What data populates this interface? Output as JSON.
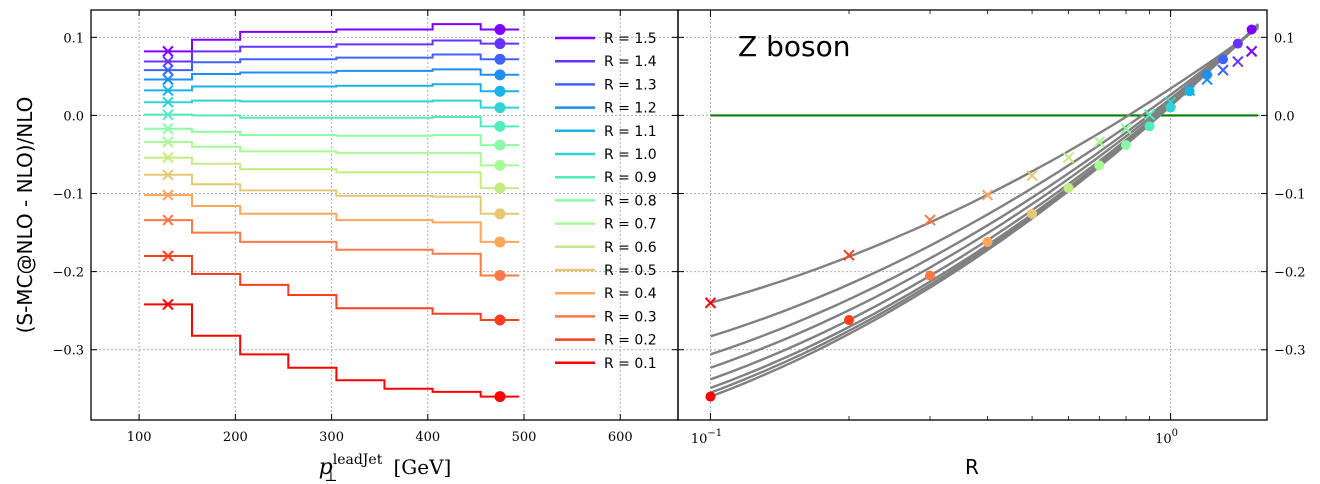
{
  "chart_data": [
    {
      "type": "line",
      "subtype": "step",
      "xlabel_main": "p",
      "xlabel_sub": "⊥",
      "xlabel_sup": "leadJet",
      "xlabel_unit": "[GeV]",
      "ylabel": "(S-MC@NLO - NLO)/NLO",
      "xlim": [
        50,
        660
      ],
      "ylim": [
        -0.39,
        0.135
      ],
      "xticks": [
        100,
        200,
        300,
        400,
        500,
        600
      ],
      "yticks": [
        0.1,
        0.0,
        -0.1,
        -0.2,
        -0.3
      ],
      "ytick_labels": [
        "0.1",
        "0.0",
        "−0.1",
        "−0.2",
        "−0.3"
      ],
      "grid": true,
      "legend_position": "right",
      "bin_edges": [
        105,
        155,
        205,
        255,
        305,
        355,
        405,
        455,
        495
      ],
      "cross_x": 130,
      "dot_x": 475,
      "series": [
        {
          "name": "R = 1.5",
          "color": "#7f00ff",
          "values": [
            0.082,
            0.097,
            0.107,
            0.107,
            0.11,
            0.11,
            0.117,
            0.11
          ],
          "cross": 0.082,
          "dot": 0.11
        },
        {
          "name": "R = 1.4",
          "color": "#6633fe",
          "values": [
            0.069,
            0.082,
            0.088,
            0.088,
            0.091,
            0.091,
            0.096,
            0.092
          ],
          "cross": 0.069,
          "dot": 0.092
        },
        {
          "name": "R = 1.3",
          "color": "#4062fa",
          "values": [
            0.058,
            0.068,
            0.072,
            0.072,
            0.074,
            0.074,
            0.078,
            0.072
          ],
          "cross": 0.058,
          "dot": 0.072
        },
        {
          "name": "R = 1.2",
          "color": "#1e8ef0",
          "values": [
            0.046,
            0.053,
            0.055,
            0.055,
            0.057,
            0.057,
            0.059,
            0.052
          ],
          "cross": 0.046,
          "dot": 0.052
        },
        {
          "name": "R = 1.1",
          "color": "#19b2e6",
          "values": [
            0.032,
            0.037,
            0.037,
            0.037,
            0.038,
            0.038,
            0.04,
            0.031
          ],
          "cross": 0.032,
          "dot": 0.031
        },
        {
          "name": "R = 1.0",
          "color": "#2fd3d3",
          "values": [
            0.017,
            0.019,
            0.018,
            0.018,
            0.018,
            0.018,
            0.019,
            0.01
          ],
          "cross": 0.017,
          "dot": 0.01
        },
        {
          "name": "R = 0.9",
          "color": "#50ecbd",
          "values": [
            0.001,
            0.0,
            -0.003,
            -0.003,
            -0.003,
            -0.003,
            -0.002,
            -0.014
          ],
          "cross": 0.001,
          "dot": -0.014
        },
        {
          "name": "R = 0.8",
          "color": "#8bfba5",
          "values": [
            -0.017,
            -0.021,
            -0.025,
            -0.025,
            -0.026,
            -0.026,
            -0.025,
            -0.038
          ],
          "cross": -0.017,
          "dot": -0.038
        },
        {
          "name": "R = 0.7",
          "color": "#a6fb94",
          "values": [
            -0.034,
            -0.04,
            -0.046,
            -0.046,
            -0.048,
            -0.048,
            -0.048,
            -0.064
          ],
          "cross": -0.034,
          "dot": -0.064
        },
        {
          "name": "R = 0.6",
          "color": "#c4eb80",
          "values": [
            -0.054,
            -0.062,
            -0.069,
            -0.069,
            -0.073,
            -0.073,
            -0.073,
            -0.093
          ],
          "cross": -0.054,
          "dot": -0.093
        },
        {
          "name": "R = 0.5",
          "color": "#e6c874",
          "values": [
            -0.076,
            -0.088,
            -0.096,
            -0.096,
            -0.103,
            -0.103,
            -0.104,
            -0.126
          ],
          "cross": -0.076,
          "dot": -0.126
        },
        {
          "name": "R = 0.4",
          "color": "#ffa55c",
          "values": [
            -0.102,
            -0.116,
            -0.126,
            -0.126,
            -0.134,
            -0.134,
            -0.137,
            -0.162
          ],
          "cross": -0.102,
          "dot": -0.162
        },
        {
          "name": "R = 0.3",
          "color": "#ff7845",
          "values": [
            -0.134,
            -0.15,
            -0.162,
            -0.162,
            -0.172,
            -0.172,
            -0.177,
            -0.205
          ],
          "cross": -0.134,
          "dot": -0.205
        },
        {
          "name": "R = 0.2",
          "color": "#ff3e20",
          "values": [
            -0.18,
            -0.203,
            -0.217,
            -0.23,
            -0.247,
            -0.247,
            -0.254,
            -0.262
          ],
          "cross": -0.18,
          "dot": -0.262
        },
        {
          "name": "R = 0.1",
          "color": "#ff0000",
          "values": [
            -0.242,
            -0.282,
            -0.306,
            -0.323,
            -0.339,
            -0.35,
            -0.354,
            -0.36
          ],
          "cross": -0.242,
          "dot": -0.36
        }
      ]
    },
    {
      "type": "line",
      "xscale": "log",
      "xlabel": "R",
      "xlim": [
        0.085,
        1.62
      ],
      "ylim": [
        -0.39,
        0.135
      ],
      "xticks": [
        0.1,
        1.0
      ],
      "xtick_base": "10",
      "xtick_exp": [
        "−1",
        "0"
      ],
      "yticks": [
        0.1,
        0.0,
        -0.1,
        -0.2,
        -0.3
      ],
      "ytick_labels": [
        "0.1",
        "0.0",
        "−0.1",
        "−0.2",
        "−0.3"
      ],
      "grid": true,
      "annotation": "Z boson",
      "annotation_color": "#008000",
      "reference_line": {
        "y": 0.0,
        "color": "#008000"
      },
      "fit_color": "#808080",
      "fit_lines": [
        {
          "y_at_0.1": -0.24,
          "y_at_1.55": 0.112
        },
        {
          "y_at_0.1": -0.283,
          "y_at_1.55": 0.114
        },
        {
          "y_at_0.1": -0.306,
          "y_at_1.55": 0.114
        },
        {
          "y_at_0.1": -0.323,
          "y_at_1.55": 0.115
        },
        {
          "y_at_0.1": -0.338,
          "y_at_1.55": 0.115
        },
        {
          "y_at_0.1": -0.349,
          "y_at_1.55": 0.116
        },
        {
          "y_at_0.1": -0.355,
          "y_at_1.55": 0.117
        },
        {
          "y_at_0.1": -0.36,
          "y_at_1.55": 0.117
        }
      ],
      "cross_points": [
        {
          "x": 0.1,
          "y": -0.24,
          "color": "#ff0000"
        },
        {
          "x": 0.2,
          "y": -0.179,
          "color": "#ff3e20"
        },
        {
          "x": 0.3,
          "y": -0.134,
          "color": "#ff7845"
        },
        {
          "x": 0.4,
          "y": -0.102,
          "color": "#ffa55c"
        },
        {
          "x": 0.5,
          "y": -0.077,
          "color": "#e6c874"
        },
        {
          "x": 0.6,
          "y": -0.054,
          "color": "#c4eb80"
        },
        {
          "x": 0.7,
          "y": -0.034,
          "color": "#a6fb94"
        },
        {
          "x": 0.8,
          "y": -0.017,
          "color": "#8bfba5"
        },
        {
          "x": 0.9,
          "y": 0.001,
          "color": "#50ecbd"
        },
        {
          "x": 1.0,
          "y": 0.017,
          "color": "#2fd3d3"
        },
        {
          "x": 1.1,
          "y": 0.032,
          "color": "#19b2e6"
        },
        {
          "x": 1.2,
          "y": 0.046,
          "color": "#1e8ef0"
        },
        {
          "x": 1.3,
          "y": 0.058,
          "color": "#4062fa"
        },
        {
          "x": 1.4,
          "y": 0.069,
          "color": "#6633fe"
        },
        {
          "x": 1.5,
          "y": 0.082,
          "color": "#7f00ff"
        }
      ],
      "dot_points": [
        {
          "x": 0.1,
          "y": -0.36,
          "color": "#ff0000"
        },
        {
          "x": 0.2,
          "y": -0.262,
          "color": "#ff3e20"
        },
        {
          "x": 0.3,
          "y": -0.205,
          "color": "#ff7845"
        },
        {
          "x": 0.4,
          "y": -0.162,
          "color": "#ffa55c"
        },
        {
          "x": 0.5,
          "y": -0.126,
          "color": "#e6c874"
        },
        {
          "x": 0.6,
          "y": -0.093,
          "color": "#c4eb80"
        },
        {
          "x": 0.7,
          "y": -0.064,
          "color": "#a6fb94"
        },
        {
          "x": 0.8,
          "y": -0.038,
          "color": "#8bfba5"
        },
        {
          "x": 0.9,
          "y": -0.014,
          "color": "#50ecbd"
        },
        {
          "x": 1.0,
          "y": 0.01,
          "color": "#2fd3d3"
        },
        {
          "x": 1.1,
          "y": 0.031,
          "color": "#19b2e6"
        },
        {
          "x": 1.2,
          "y": 0.052,
          "color": "#1e8ef0"
        },
        {
          "x": 1.3,
          "y": 0.072,
          "color": "#4062fa"
        },
        {
          "x": 1.4,
          "y": 0.092,
          "color": "#6633fe"
        },
        {
          "x": 1.5,
          "y": 0.11,
          "color": "#7f00ff"
        }
      ]
    }
  ]
}
